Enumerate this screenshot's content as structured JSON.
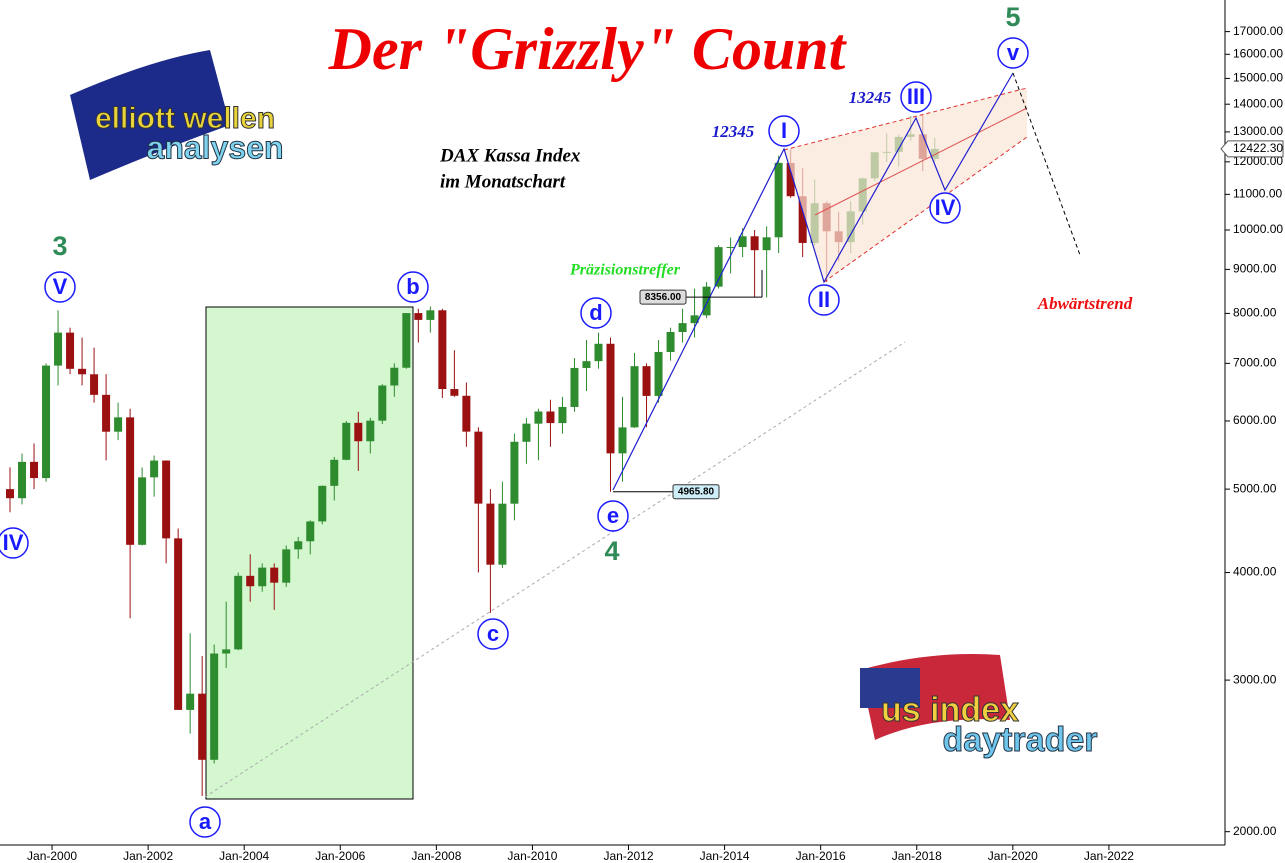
{
  "chart_data": {
    "type": "candlestick",
    "title": "Der \"Grizzly\" Count",
    "subtitle_lines": [
      "DAX Kassa Index",
      "im Monatschart"
    ],
    "log_y": true,
    "up_color": "#2e8b2e",
    "down_color": "#9b1010",
    "x": [
      "1999-01",
      "1999-04",
      "1999-07",
      "1999-10",
      "2000-01",
      "2000-04",
      "2000-07",
      "2000-10",
      "2001-01",
      "2001-04",
      "2001-07",
      "2001-10",
      "2002-01",
      "2002-04",
      "2002-07",
      "2002-10",
      "2003-01",
      "2003-04",
      "2003-07",
      "2003-10",
      "2004-01",
      "2004-04",
      "2004-07",
      "2004-10",
      "2005-01",
      "2005-04",
      "2005-07",
      "2005-10",
      "2006-01",
      "2006-04",
      "2006-07",
      "2006-10",
      "2007-01",
      "2007-04",
      "2007-07",
      "2007-10",
      "2008-01",
      "2008-04",
      "2008-07",
      "2008-10",
      "2009-01",
      "2009-04",
      "2009-07",
      "2009-10",
      "2010-01",
      "2010-04",
      "2010-07",
      "2010-10",
      "2011-01",
      "2011-04",
      "2011-07",
      "2011-10",
      "2012-01",
      "2012-04",
      "2012-07",
      "2012-10",
      "2013-01",
      "2013-04",
      "2013-07",
      "2013-10",
      "2014-01",
      "2014-04",
      "2014-07",
      "2014-10",
      "2015-01",
      "2015-04",
      "2015-07",
      "2015-10",
      "2016-01",
      "2016-04",
      "2016-07",
      "2016-10",
      "2017-01",
      "2017-04",
      "2017-07",
      "2017-10",
      "2018-01",
      "2018-04"
    ],
    "open": [
      5000,
      4880,
      5378,
      5150,
      6958,
      7599,
      6898,
      6798,
      6434,
      5830,
      6058,
      4308,
      5160,
      5397,
      4383,
      2770,
      2893,
      2424,
      3221,
      3257,
      3965,
      3856,
      4053,
      3893,
      4256,
      4349,
      4586,
      5044,
      5408,
      5970,
      5683,
      6005,
      6597,
      6918,
      8007,
      7862,
      8067,
      6535,
      6418,
      5831,
      4810,
      4085,
      4809,
      5675,
      5957,
      6154,
      5966,
      6229,
      6914,
      7041,
      7376,
      5502,
      5898,
      6947,
      6416,
      7216,
      7612,
      7795,
      7959,
      8594,
      9552,
      9555,
      9833,
      9474,
      9806,
      11966,
      10945,
      9660,
      10743,
      9965,
      9680,
      10511,
      11481,
      12312,
      12325,
      12829,
      12918,
      12097
    ],
    "high": [
      5300,
      5500,
      5650,
      7000,
      8065,
      7700,
      7500,
      7300,
      6800,
      6300,
      6200,
      5300,
      5470,
      5400,
      4500,
      3400,
      3200,
      3300,
      3700,
      4000,
      4200,
      4100,
      4100,
      4300,
      4400,
      4600,
      5050,
      5450,
      6000,
      6150,
      6050,
      6620,
      7000,
      8000,
      8100,
      8150,
      8100,
      7250,
      6650,
      5900,
      5000,
      5100,
      5800,
      6050,
      6200,
      6350,
      6400,
      7100,
      7450,
      7600,
      7500,
      6400,
      7200,
      7000,
      7450,
      7700,
      8100,
      8550,
      8700,
      9600,
      9800,
      10050,
      10000,
      10100,
      12200,
      12400,
      11800,
      11450,
      10800,
      10500,
      10800,
      11500,
      12300,
      12950,
      12900,
      13550,
      13600,
      12800
    ],
    "low": [
      4700,
      4800,
      5000,
      5100,
      6600,
      6800,
      6600,
      6300,
      5400,
      5700,
      3540,
      4300,
      4900,
      4100,
      2800,
      2600,
      2200,
      2400,
      3100,
      3250,
      3700,
      3800,
      3620,
      3850,
      4150,
      4200,
      4550,
      4850,
      5400,
      5250,
      5500,
      5950,
      6400,
      6900,
      7400,
      7600,
      6380,
      6400,
      5600,
      4000,
      3590,
      4050,
      4600,
      5350,
      5400,
      5600,
      5800,
      6150,
      6500,
      6900,
      4965,
      5100,
      5890,
      5900,
      6300,
      7050,
      7400,
      7500,
      7900,
      8550,
      8900,
      9300,
      8350,
      8350,
      9400,
      10900,
      9300,
      9600,
      8700,
      9200,
      9400,
      10150,
      11400,
      12000,
      11850,
      12700,
      11700,
      12000
    ],
    "close": [
      4880,
      5378,
      5150,
      6958,
      7599,
      6898,
      6798,
      6434,
      5830,
      6058,
      4308,
      5160,
      5397,
      4383,
      2770,
      2893,
      2424,
      3221,
      3257,
      3965,
      3856,
      4053,
      3893,
      4256,
      4349,
      4586,
      5044,
      5408,
      5970,
      5683,
      6005,
      6597,
      6918,
      8007,
      7862,
      8067,
      6535,
      6418,
      5831,
      4810,
      4085,
      4809,
      5675,
      5957,
      6154,
      5966,
      6229,
      6914,
      7041,
      7376,
      5502,
      5898,
      6947,
      6416,
      7216,
      7612,
      7795,
      7959,
      8594,
      9552,
      9555,
      9833,
      9474,
      9806,
      11966,
      10945,
      9660,
      10743,
      9965,
      9680,
      10511,
      11481,
      12312,
      12325,
      12829,
      12918,
      12097,
      12422.3
    ],
    "ylim": [
      1930,
      18500
    ],
    "yticks": [
      {
        "value": 2000,
        "label": "2000.00"
      },
      {
        "value": 3000,
        "label": "3000.00"
      },
      {
        "value": 4000,
        "label": "4000.00"
      },
      {
        "value": 5000,
        "label": "5000.00"
      },
      {
        "value": 6000,
        "label": "6000.00"
      },
      {
        "value": 7000,
        "label": "7000.00"
      },
      {
        "value": 8000,
        "label": "8000.00"
      },
      {
        "value": 9000,
        "label": "9000.00"
      },
      {
        "value": 10000,
        "label": "10000.00"
      },
      {
        "value": 11000,
        "label": "11000.00"
      },
      {
        "value": 12000,
        "label": "12000.00"
      },
      {
        "value": 13000,
        "label": "13000.00"
      },
      {
        "value": 14000,
        "label": "14000.00"
      },
      {
        "value": 15000,
        "label": "15000.00"
      },
      {
        "value": 16000,
        "label": "16000.00"
      },
      {
        "value": 17000,
        "label": "17000.00"
      }
    ],
    "xlim": [
      "1998-12",
      "2024-06"
    ],
    "xticks": [
      {
        "value": "2000-01",
        "label": "Jan-2000"
      },
      {
        "value": "2002-01",
        "label": "Jan-2002"
      },
      {
        "value": "2004-01",
        "label": "Jan-2004"
      },
      {
        "value": "2006-01",
        "label": "Jan-2006"
      },
      {
        "value": "2008-01",
        "label": "Jan-2008"
      },
      {
        "value": "2010-01",
        "label": "Jan-2010"
      },
      {
        "value": "2012-01",
        "label": "Jan-2012"
      },
      {
        "value": "2014-01",
        "label": "Jan-2014"
      },
      {
        "value": "2016-01",
        "label": "Jan-2016"
      },
      {
        "value": "2018-01",
        "label": "Jan-2018"
      },
      {
        "value": "2020-01",
        "label": "Jan-2020"
      },
      {
        "value": "2022-01",
        "label": "Jan-2022"
      }
    ],
    "last_price": {
      "value": 12422.3,
      "label": "12422.30"
    },
    "price_marks": [
      {
        "value": 8356,
        "label": "8356.00"
      },
      {
        "value": 4965.8,
        "label": "4965.80"
      }
    ],
    "annotations": [
      "12345",
      "13245",
      "Präzisionstreffer",
      "Abwärtstrend"
    ],
    "wave_labels": [
      "3",
      "V",
      "IV",
      "a",
      "b",
      "c",
      "d",
      "e",
      "4",
      "I",
      "II",
      "III",
      "IV",
      "v",
      "5"
    ]
  },
  "logos": {
    "left": [
      "elliott wellen",
      "analysen"
    ],
    "right": [
      "us index",
      "daytrader"
    ]
  }
}
